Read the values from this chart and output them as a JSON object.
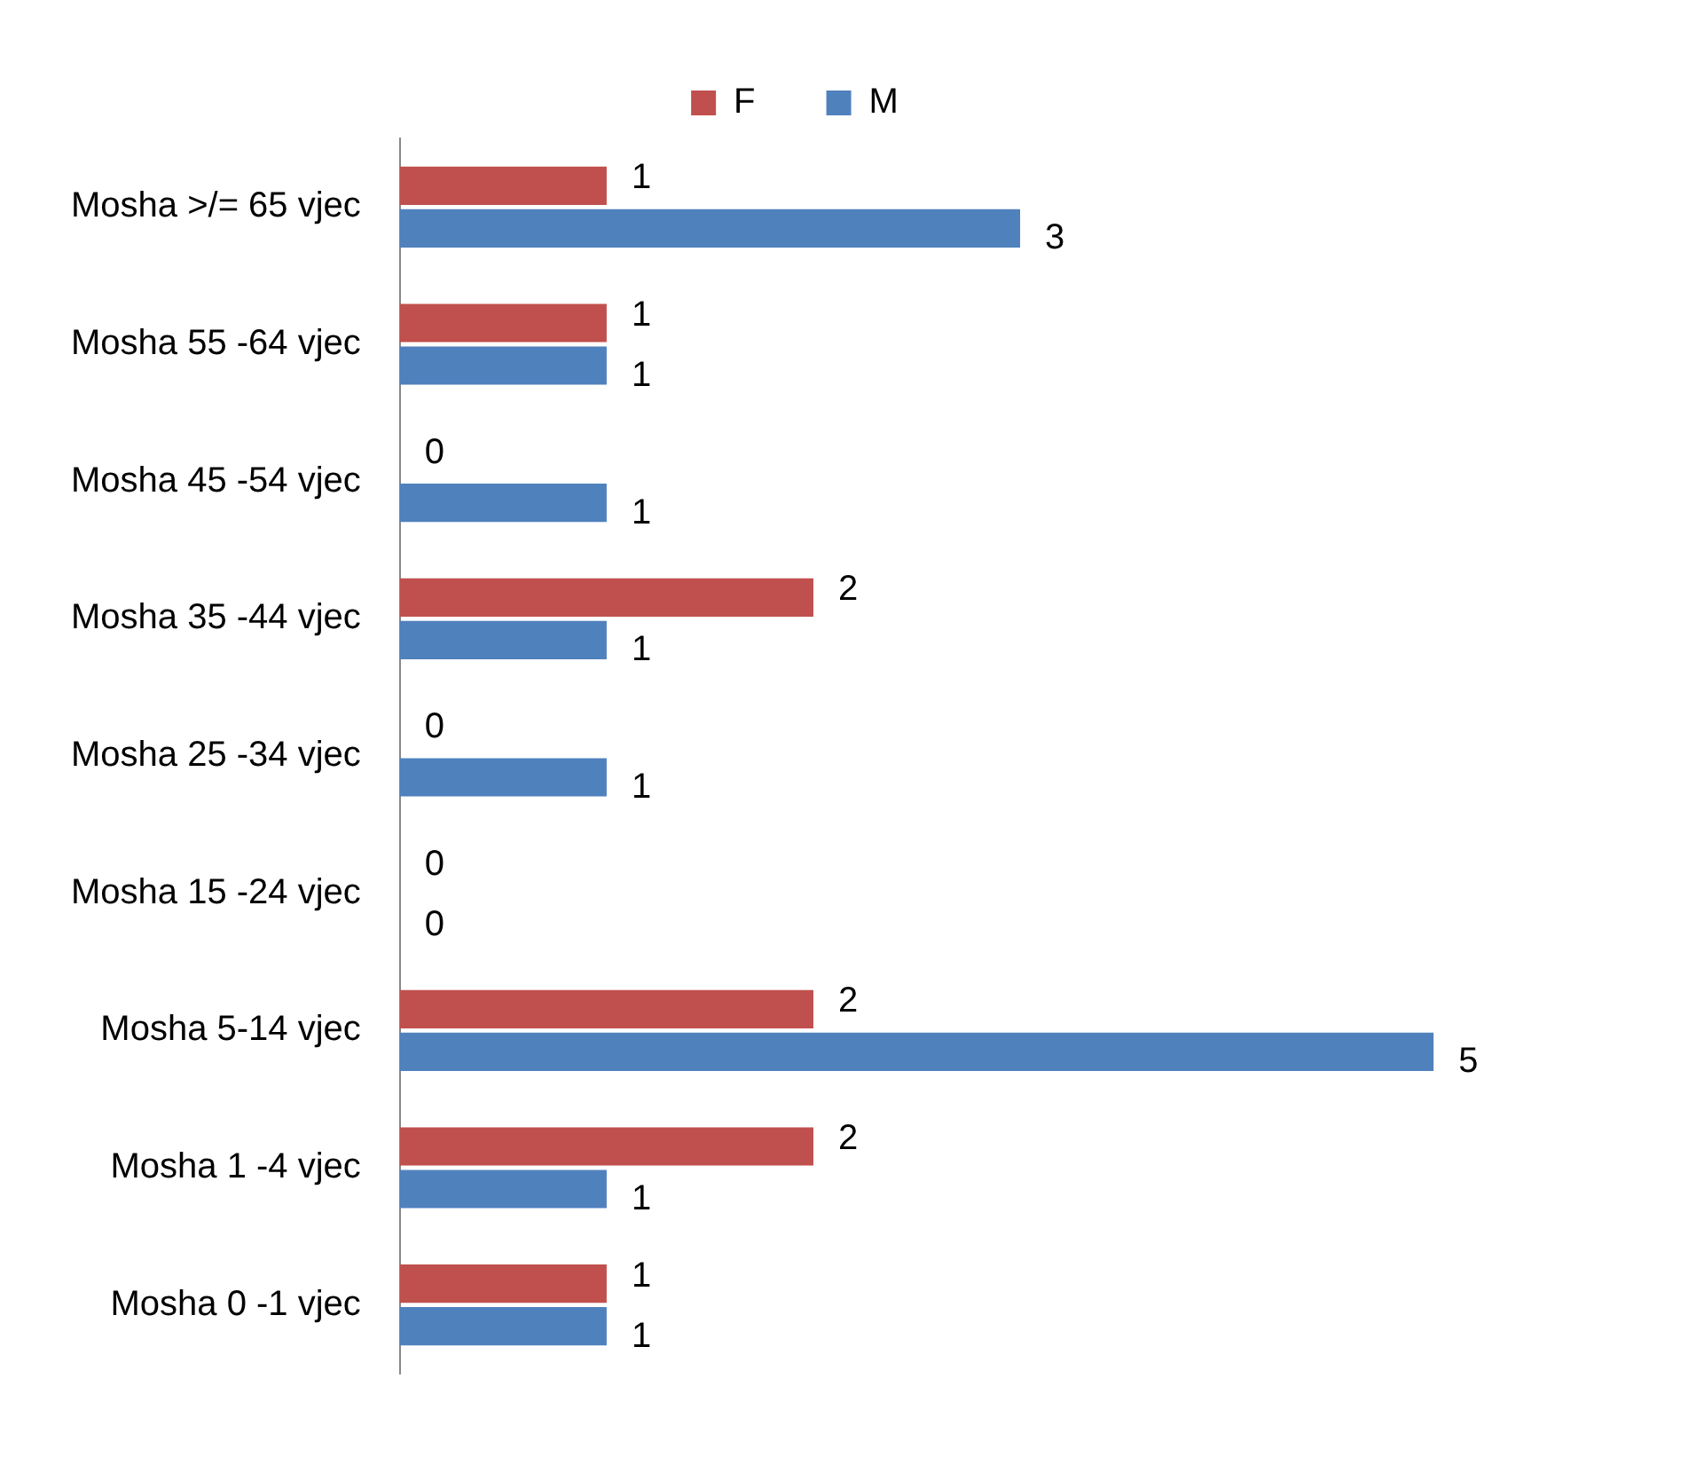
{
  "chart_data": {
    "type": "bar",
    "orientation": "horizontal",
    "categories": [
      "Mosha >/= 65 vjec",
      "Mosha 55 -64 vjec",
      "Mosha 45 -54 vjec",
      "Mosha 35 -44 vjec",
      "Mosha 25 -34 vjec",
      "Mosha 15 -24 vjec",
      "Mosha 5-14 vjec",
      "Mosha 1 -4 vjec",
      "Mosha 0 -1 vjec"
    ],
    "series": [
      {
        "name": "F",
        "color": "#c0504d",
        "values": [
          1,
          1,
          0,
          2,
          0,
          0,
          2,
          2,
          1
        ]
      },
      {
        "name": "M",
        "color": "#4f81bd",
        "values": [
          3,
          1,
          1,
          1,
          1,
          0,
          5,
          1,
          1
        ]
      }
    ],
    "data_labels": true,
    "legend": "top",
    "grid": false,
    "tick_labels": "y"
  }
}
